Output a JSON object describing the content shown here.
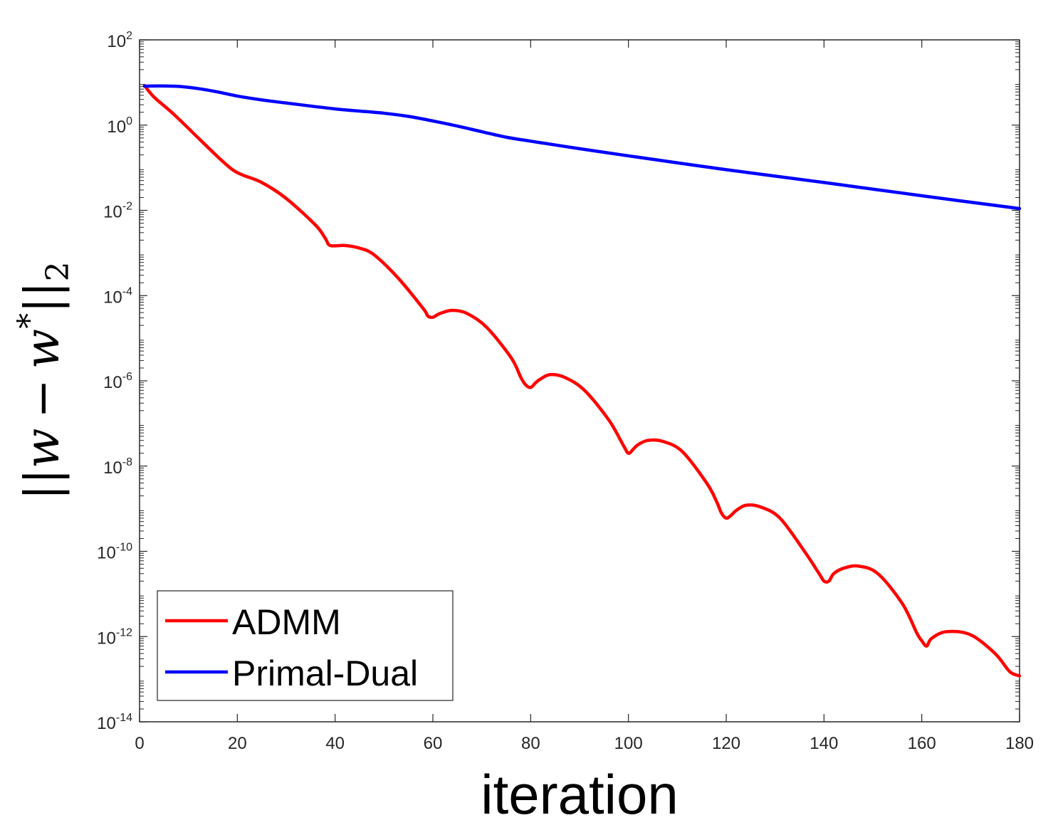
{
  "chart_data": {
    "type": "line",
    "title": "",
    "xlabel": "iteration",
    "ylabel": "||w − w*||₂",
    "ylabel_parts": {
      "norm_open": "||",
      "variable": "w",
      "minus": "−",
      "star_var": "w",
      "star": "*",
      "norm_close": "||",
      "subscript": "2"
    },
    "x_scale": "linear",
    "y_scale": "log",
    "xlim": [
      0,
      180
    ],
    "ylim": [
      1e-14,
      100
    ],
    "x_ticks": [
      0,
      20,
      40,
      60,
      80,
      100,
      120,
      140,
      160,
      180
    ],
    "x_tick_labels": [
      "0",
      "20",
      "40",
      "60",
      "80",
      "100",
      "120",
      "140",
      "160",
      "180"
    ],
    "y_ticks": [
      1e-14,
      1e-12,
      1e-10,
      1e-08,
      1e-06,
      0.0001,
      0.01,
      1,
      100
    ],
    "y_tick_labels": [
      {
        "base": "10",
        "exp": "-14"
      },
      {
        "base": "10",
        "exp": "-12"
      },
      {
        "base": "10",
        "exp": "-10"
      },
      {
        "base": "10",
        "exp": "-8"
      },
      {
        "base": "10",
        "exp": "-6"
      },
      {
        "base": "10",
        "exp": "-4"
      },
      {
        "base": "10",
        "exp": "-2"
      },
      {
        "base": "10",
        "exp": "0"
      },
      {
        "base": "10",
        "exp": "2"
      }
    ],
    "grid": false,
    "legend_position": "bottom-left",
    "series": [
      {
        "name": "ADMM",
        "color": "#ff0000",
        "x": [
          1,
          3,
          7,
          12,
          16,
          19,
          21,
          25,
          30,
          36,
          38,
          39,
          42,
          45,
          48,
          53,
          58,
          59,
          60,
          61,
          62,
          64,
          67,
          71,
          76,
          78,
          79,
          80,
          81,
          82,
          84,
          87,
          91,
          96,
          99,
          100,
          101,
          102,
          104,
          107,
          111,
          116,
          118,
          119,
          120,
          121,
          122,
          124,
          127,
          131,
          136,
          139,
          140,
          141,
          142,
          144,
          147,
          151,
          156,
          159,
          160,
          161,
          162,
          165,
          170,
          175,
          178,
          180
        ],
        "y": [
          8.5,
          4.5,
          1.8,
          0.5,
          0.18,
          0.09,
          0.068,
          0.045,
          0.019,
          0.0045,
          0.0022,
          0.0015,
          0.0015,
          0.0013,
          0.0009,
          0.00025,
          5e-05,
          3.3e-05,
          3.1e-05,
          3.6e-05,
          4e-05,
          4.5e-05,
          3.8e-05,
          1.8e-05,
          3.5e-06,
          1.2e-06,
          8e-07,
          7e-07,
          9e-07,
          1.1e-06,
          1.4e-06,
          1.2e-06,
          6e-07,
          1.2e-07,
          3e-08,
          2e-08,
          2.5e-08,
          3.2e-08,
          4e-08,
          3.8e-08,
          2.2e-08,
          4e-09,
          1.5e-09,
          8e-10,
          6e-10,
          7e-10,
          9e-10,
          1.2e-09,
          1.1e-09,
          6e-10,
          1e-10,
          3e-11,
          2e-11,
          2e-11,
          3e-11,
          4e-11,
          4.5e-11,
          3e-11,
          6e-12,
          1.2e-12,
          8e-13,
          6e-13,
          9e-13,
          1.3e-12,
          1.1e-12,
          4e-13,
          1.5e-13,
          1.2e-13
        ]
      },
      {
        "name": "Primal-Dual",
        "color": "#0000ff",
        "x": [
          1,
          4,
          8,
          12,
          16,
          20,
          25,
          30,
          40,
          50,
          55,
          60,
          65,
          70,
          75,
          80,
          90,
          100,
          120,
          140,
          160,
          180
        ],
        "y": [
          8.2,
          8.3,
          8.1,
          7.2,
          6.0,
          4.8,
          3.9,
          3.3,
          2.4,
          1.9,
          1.6,
          1.25,
          0.95,
          0.7,
          0.52,
          0.42,
          0.28,
          0.19,
          0.09,
          0.045,
          0.022,
          0.011
        ]
      }
    ]
  }
}
